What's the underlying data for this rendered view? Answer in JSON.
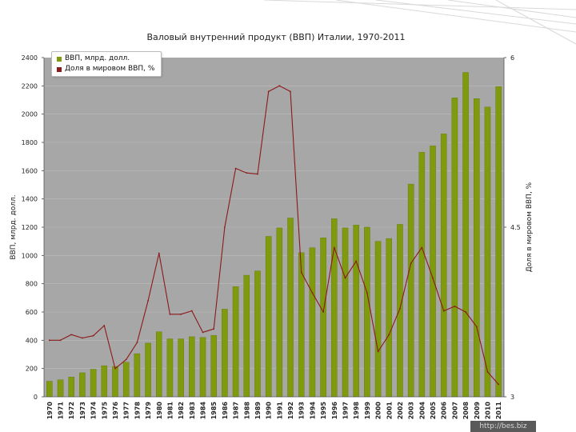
{
  "colors": {
    "plot_bg": "#a7a7a7",
    "bar": "#7f9a0c",
    "bar_edge": "#5f7808",
    "line": "#8b1a1a",
    "grid": "#bdbdbd"
  },
  "watermark": "http://bes.biz",
  "chart_data": {
    "type": "bar",
    "title": "Валовый внутренний продукт (ВВП) Италии, 1970-2011",
    "xlabel": "",
    "ylabel": "ВВП, млрд. долл.",
    "y2label": "Доля в мировом ВВП, %",
    "ylim": [
      0,
      2400
    ],
    "yticks": [
      0,
      200,
      400,
      600,
      800,
      1000,
      1200,
      1400,
      1600,
      1800,
      2000,
      2200,
      2400
    ],
    "y2lim": [
      3,
      6
    ],
    "y2ticks": [
      "3",
      "4.5",
      "6"
    ],
    "grid": true,
    "legend_position": "top-left",
    "categories": [
      "1970",
      "1971",
      "1972",
      "1973",
      "1974",
      "1975",
      "1976",
      "1977",
      "1978",
      "1979",
      "1980",
      "1981",
      "1982",
      "1983",
      "1984",
      "1985",
      "1986",
      "1987",
      "1988",
      "1989",
      "1990",
      "1991",
      "1992",
      "1993",
      "1994",
      "1995",
      "1996",
      "1997",
      "1998",
      "1999",
      "2000",
      "2001",
      "2002",
      "2003",
      "2004",
      "2005",
      "2006",
      "2007",
      "2008",
      "2009",
      "2010",
      "2011"
    ],
    "series": [
      {
        "name": "ВВП, млрд. долл.",
        "kind": "bar",
        "axis": "left",
        "values": [
          110,
          120,
          140,
          170,
          195,
          220,
          215,
          245,
          305,
          380,
          460,
          410,
          410,
          425,
          420,
          435,
          620,
          780,
          860,
          890,
          1135,
          1195,
          1265,
          1020,
          1055,
          1125,
          1260,
          1195,
          1215,
          1200,
          1100,
          1120,
          1220,
          1505,
          1730,
          1775,
          1860,
          2115,
          2295,
          2110,
          2050,
          2195
        ]
      },
      {
        "name": "Доля в мировом ВВП, %",
        "kind": "line",
        "axis": "right",
        "values": [
          3.5,
          3.5,
          3.55,
          3.52,
          3.54,
          3.63,
          3.25,
          3.33,
          3.48,
          3.85,
          4.27,
          3.73,
          3.73,
          3.76,
          3.57,
          3.6,
          4.5,
          5.02,
          4.98,
          4.97,
          5.7,
          5.75,
          5.7,
          4.1,
          3.92,
          3.75,
          4.32,
          4.05,
          4.2,
          3.92,
          3.4,
          3.55,
          3.78,
          4.18,
          4.32,
          4.05,
          3.76,
          3.8,
          3.75,
          3.62,
          3.22,
          3.11
        ]
      }
    ]
  }
}
